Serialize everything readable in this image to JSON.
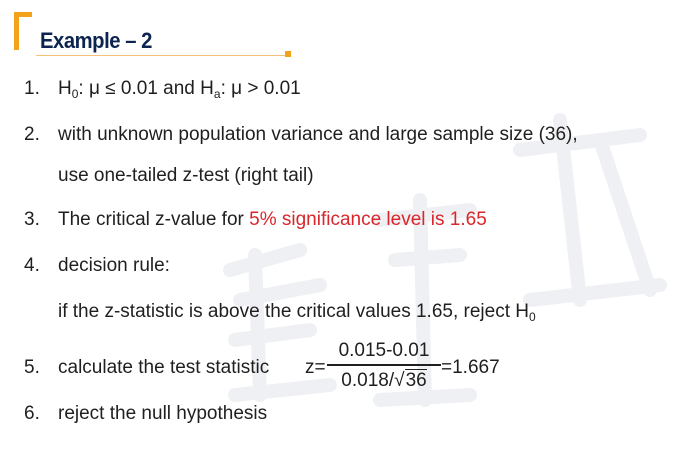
{
  "title": "Example – 2",
  "items": [
    {
      "num": "1.",
      "h0_label": "H",
      "h0_sub": "0",
      "h0_text": ": μ ≤ 0.01 and H",
      "ha_sub": "a",
      "ha_text": ": μ > 0.01"
    },
    {
      "num": "2.",
      "line1": "with unknown population variance and large sample size (36),",
      "line2": "use one-tailed z-test (right tail)"
    },
    {
      "num": "3.",
      "text": "The critical z-value for ",
      "highlight": "5% significance level is 1.65"
    },
    {
      "num": "4.",
      "text": "decision rule:",
      "detail": "if the z-statistic is above the critical values 1.65, reject H",
      "detail_sub": "0"
    },
    {
      "num": "5.",
      "text": "calculate the test statistic",
      "z_prefix": "z=",
      "numerator": "0.015-0.01",
      "denom_left": "0.018/",
      "sqrt_symbol": "√",
      "sqrt_arg": "36",
      "result": "=1.667"
    },
    {
      "num": "6.",
      "text": "reject the null hypothesis"
    }
  ],
  "colors": {
    "accent": "#f3a21c",
    "title": "#0d2450",
    "highlight": "#d9262b"
  }
}
